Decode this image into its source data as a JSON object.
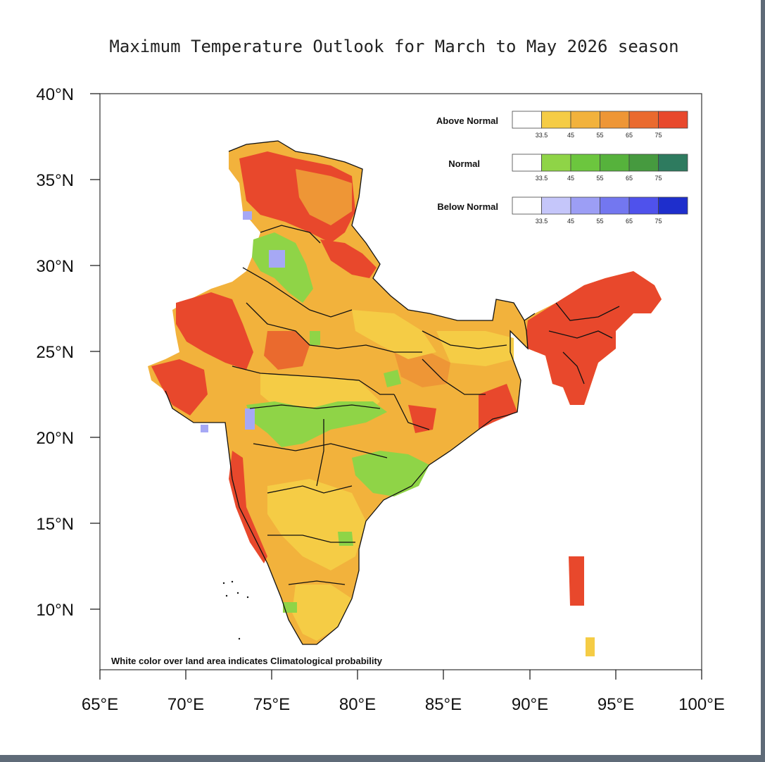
{
  "title": "Maximum Temperature Outlook for March to May 2026 season",
  "note": "White color over land area indicates Climatological probability",
  "axes": {
    "x_ticks": [
      "65°E",
      "70°E",
      "75°E",
      "80°E",
      "85°E",
      "90°E",
      "95°E",
      "100°E"
    ],
    "y_ticks": [
      "40°N",
      "35°N",
      "30°N",
      "25°N",
      "20°N",
      "15°N",
      "10°N"
    ],
    "lon_range": [
      65,
      100
    ],
    "lat_range": [
      6.5,
      40
    ]
  },
  "legend": {
    "tick_labels": [
      "33.5",
      "45",
      "55",
      "65",
      "75"
    ],
    "categories": [
      {
        "name": "Above Normal",
        "colors": [
          "#ffffff",
          "#f5cc45",
          "#f2b23c",
          "#ee9636",
          "#ea6a2e",
          "#e8482c"
        ]
      },
      {
        "name": "Normal",
        "colors": [
          "#ffffff",
          "#8fd447",
          "#6cc63e",
          "#56b23c",
          "#469a3f",
          "#2e7b5f"
        ]
      },
      {
        "name": "Below Normal",
        "colors": [
          "#ffffff",
          "#c5c6fa",
          "#9c9ef5",
          "#7377f0",
          "#4f52ec",
          "#1e2ecc"
        ]
      }
    ]
  },
  "map_colors": {
    "above_low": "#f5cc45",
    "above_mid": "#f2b23c",
    "above_high": "#ee9636",
    "above_very_high": "#e8482c",
    "normal": "#8fd447",
    "below": "#a6a8f5",
    "boundary": "#111111"
  }
}
